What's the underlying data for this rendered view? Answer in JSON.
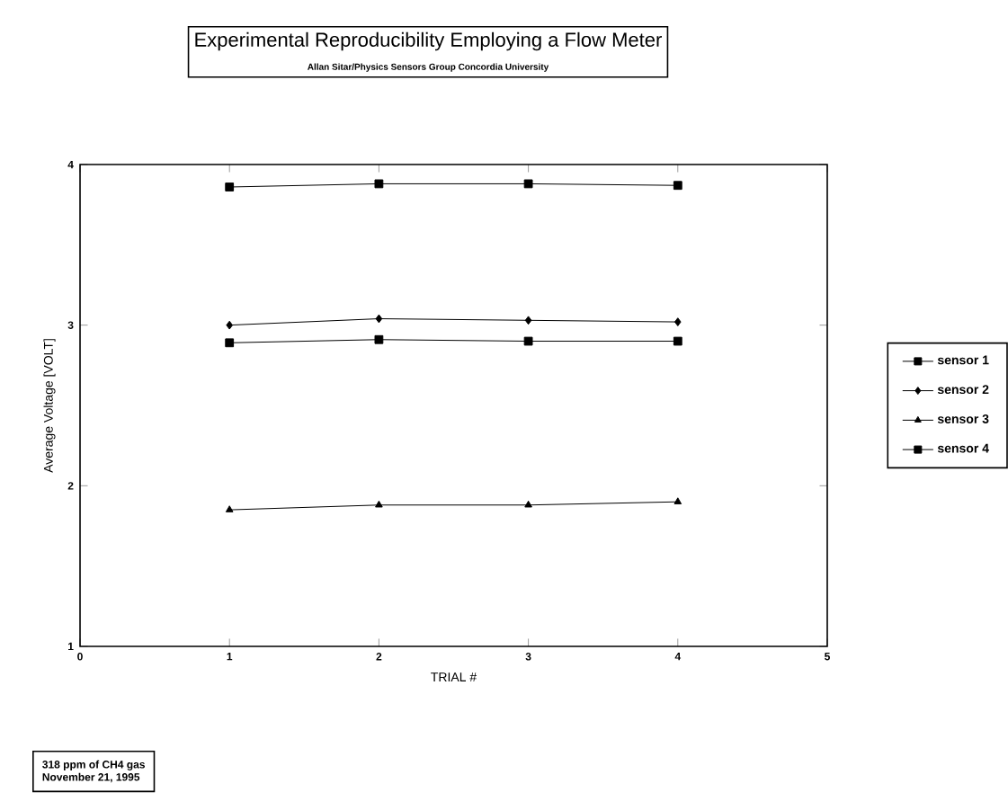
{
  "chart_data": {
    "type": "line",
    "title": "Experimental Reproducibility Employing a Flow Meter",
    "subtitle": "Allan Sitar/Physics Sensors Group Concordia University",
    "xlabel": "TRIAL #",
    "ylabel": "Average Voltage  [VOLT]",
    "annotations": [
      "318 ppm  of  CH4 gas",
      "November 21, 1995"
    ],
    "x": [
      1,
      2,
      3,
      4
    ],
    "series": [
      {
        "name": "sensor 1",
        "color": "#000000",
        "marker": "square",
        "values": [
          2.89,
          2.91,
          2.9,
          2.9
        ]
      },
      {
        "name": "sensor 2",
        "color": "#000000",
        "marker": "diamond",
        "values": [
          3.0,
          3.04,
          3.03,
          3.02
        ]
      },
      {
        "name": "sensor 3",
        "color": "#000000",
        "marker": "triangle",
        "values": [
          1.85,
          1.88,
          1.88,
          1.9
        ]
      },
      {
        "name": "sensor 4",
        "color": "#000000",
        "marker": "square",
        "values": [
          3.86,
          3.88,
          3.88,
          3.87
        ]
      }
    ],
    "xlim": [
      0,
      5
    ],
    "ylim": [
      1,
      4
    ],
    "xticks": [
      0,
      1,
      2,
      3,
      4,
      5
    ],
    "yticks": [
      1,
      2,
      3,
      4
    ],
    "legend": "right",
    "grid": false,
    "line_style": "solid"
  }
}
